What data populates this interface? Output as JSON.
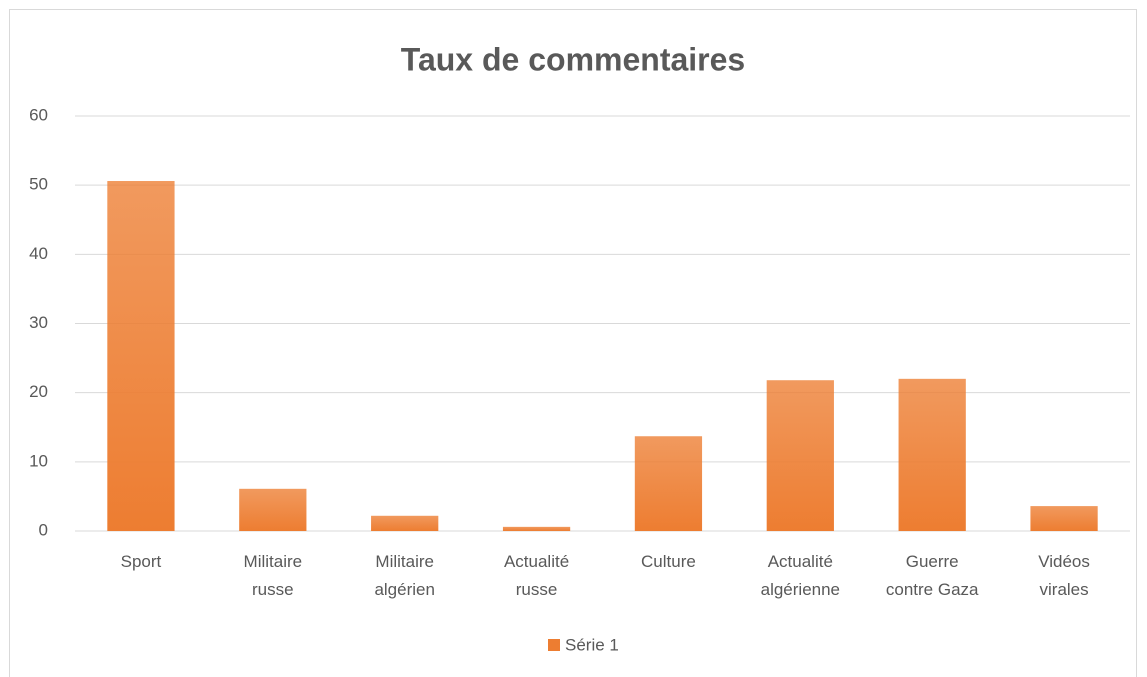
{
  "chart_data": {
    "type": "bar",
    "title": "Taux de commentaires",
    "categories": [
      "Sport",
      "Militaire\nrusse",
      "Militaire\nalgérien",
      "Actualité\nrusse",
      "Culture",
      "Actualité\nalgérienne",
      "Guerre\ncontre Gaza",
      "Vidéos\nvirales"
    ],
    "series": [
      {
        "name": "Série 1",
        "color": "#ed7d31",
        "values": [
          50.6,
          6.1,
          2.2,
          0.6,
          13.7,
          21.8,
          22.0,
          3.6
        ]
      }
    ],
    "ylim": [
      0,
      60
    ],
    "yticks": [
      0,
      10,
      20,
      30,
      40,
      50,
      60
    ],
    "grid": true,
    "legend": "bottom"
  }
}
